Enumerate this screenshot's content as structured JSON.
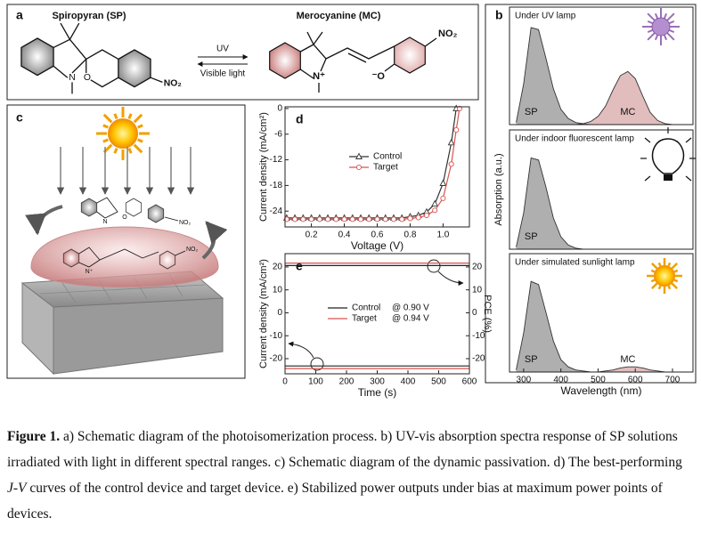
{
  "panel_a": {
    "letter": "a",
    "sp_name": "Spiropyran (SP)",
    "mc_name": "Merocyanine (MC)",
    "forward": "UV",
    "backward": "Visible light",
    "sp_atoms": [
      "N",
      "O",
      "NO₂"
    ],
    "mc_atoms": [
      "N⁺",
      "⁻O",
      "NO₂"
    ]
  },
  "panel_c": {
    "letter": "c",
    "atoms": [
      "N",
      "O",
      "NO₂",
      "N⁺",
      "NO₂"
    ]
  },
  "chart_data": [
    {
      "type": "line",
      "letter": "d",
      "xlabel": "Voltage (V)",
      "ylabel": "Current density (mA/cm²)",
      "x": [
        0.05,
        0.1,
        0.15,
        0.2,
        0.25,
        0.3,
        0.35,
        0.4,
        0.45,
        0.5,
        0.55,
        0.6,
        0.65,
        0.7,
        0.75,
        0.8,
        0.85,
        0.9,
        0.95,
        1.0,
        1.05,
        1.08,
        1.1
      ],
      "series": [
        {
          "name": "Control",
          "color": "#333333",
          "marker": "triangle",
          "values": [
            -25.6,
            -25.6,
            -25.6,
            -25.6,
            -25.6,
            -25.6,
            -25.6,
            -25.6,
            -25.6,
            -25.6,
            -25.6,
            -25.6,
            -25.6,
            -25.6,
            -25.6,
            -25.3,
            -25.0,
            -24.2,
            -22.3,
            -17.5,
            -8,
            0,
            null
          ]
        },
        {
          "name": "Target",
          "color": "#d9534f",
          "marker": "circle",
          "values": [
            -25.9,
            -25.9,
            -25.9,
            -25.9,
            -25.9,
            -25.9,
            -25.9,
            -25.9,
            -25.9,
            -25.9,
            -25.9,
            -25.9,
            -25.9,
            -25.9,
            -25.9,
            -25.7,
            -25.5,
            -25.0,
            -23.8,
            -21,
            -13,
            -5,
            0
          ]
        }
      ],
      "xlim": [
        0.04,
        1.16
      ],
      "xticks": [
        0.2,
        0.4,
        0.6,
        0.8,
        {
          "value": 1,
          "label": "1.0"
        }
      ],
      "ylim": [
        -27.7,
        0.4
      ],
      "yticks": [
        -24,
        -18,
        -12,
        -6,
        0
      ]
    },
    {
      "type": "line",
      "letter": "e",
      "xlabel": "Time (s)",
      "ylabel": "Current density (mA/cm²)",
      "y2label": "PCE (%)",
      "x": [
        0,
        600
      ],
      "series": [
        {
          "name": "Control",
          "color": "#222222",
          "values": [
            -23.2,
            -23.2
          ]
        },
        {
          "name": "Target",
          "color": "#d9534f",
          "values": [
            -24.3,
            -24.3
          ]
        },
        {
          "color": "#222222",
          "axis": "y2",
          "values": [
            20.6,
            20.6
          ]
        },
        {
          "color": "#d9534f",
          "axis": "y2",
          "values": [
            21.7,
            21.7
          ]
        }
      ],
      "legend_notes": [
        "@ 0.90 V",
        "@ 0.94 V"
      ],
      "xlim": [
        0,
        600
      ],
      "xticks": [
        0,
        100,
        200,
        300,
        400,
        500,
        600
      ],
      "ylim": [
        -26.6,
        25.8
      ],
      "yticks": [
        -20,
        -10,
        0,
        10,
        20
      ],
      "y2lim": [
        -26.6,
        25.8
      ],
      "y2ticks": [
        -20,
        -10,
        0,
        10,
        20
      ]
    },
    {
      "type": "area",
      "letter": "b",
      "subtitle": "Under UV lamp",
      "x": [
        280,
        300,
        320,
        340,
        360,
        380,
        400,
        420,
        440,
        460,
        480,
        500,
        520,
        540,
        560,
        580,
        600,
        620,
        640,
        660,
        680,
        700,
        720,
        740
      ],
      "series": [
        {
          "name": "SP",
          "color": "#6e6e6e",
          "values": [
            0.02,
            0.4,
            0.95,
            0.93,
            0.65,
            0.35,
            0.15,
            0.06,
            0.02,
            0.01,
            0,
            0,
            0,
            0,
            0,
            0,
            0,
            0,
            0,
            0,
            0,
            0,
            0,
            0
          ]
        },
        {
          "name": "MC",
          "color": "#c98686",
          "values": [
            0,
            0,
            0,
            0,
            0,
            0,
            0,
            0,
            0,
            0.01,
            0.03,
            0.08,
            0.18,
            0.34,
            0.48,
            0.52,
            0.45,
            0.28,
            0.12,
            0.04,
            0.01,
            0,
            0,
            0
          ]
        }
      ],
      "xlim": [
        262,
        755
      ],
      "ylim": [
        0,
        1.15
      ]
    },
    {
      "type": "area",
      "subtitle": "Under indoor fluorescent lamp",
      "ylabel": "Absorption (a.u.)",
      "x": [
        280,
        300,
        320,
        340,
        360,
        380,
        400,
        420,
        440,
        460,
        480,
        500,
        520,
        540,
        560,
        580,
        600,
        620,
        640,
        660,
        680,
        700,
        720,
        740
      ],
      "series": [
        {
          "name": "SP",
          "color": "#6e6e6e",
          "values": [
            0.02,
            0.35,
            0.88,
            0.86,
            0.6,
            0.3,
            0.12,
            0.04,
            0.01,
            0,
            0,
            0,
            0,
            0,
            0,
            0,
            0,
            0,
            0,
            0,
            0,
            0,
            0,
            0
          ]
        }
      ],
      "xlim": [
        262,
        755
      ],
      "ylim": [
        0,
        1.15
      ]
    },
    {
      "type": "area",
      "subtitle": "Under simulated sunlight lamp",
      "xlabel": "Wavelength (nm)",
      "x": [
        280,
        300,
        320,
        340,
        360,
        380,
        400,
        420,
        440,
        460,
        480,
        500,
        520,
        540,
        560,
        580,
        600,
        620,
        640,
        660,
        680,
        700,
        720,
        740
      ],
      "series": [
        {
          "name": "SP",
          "color": "#6e6e6e",
          "values": [
            0.02,
            0.38,
            0.88,
            0.85,
            0.58,
            0.3,
            0.12,
            0.05,
            0.02,
            0.01,
            0,
            0,
            0,
            0,
            0,
            0,
            0,
            0,
            0,
            0,
            0,
            0,
            0,
            0
          ]
        },
        {
          "name": "MC",
          "color": "#c98686",
          "values": [
            0,
            0,
            0,
            0,
            0,
            0,
            0,
            0,
            0,
            0,
            0,
            0,
            0.01,
            0.02,
            0.04,
            0.05,
            0.05,
            0.04,
            0.02,
            0.01,
            0,
            0,
            0,
            0
          ]
        }
      ],
      "xlim": [
        262,
        755
      ],
      "xticks": [
        300,
        400,
        500,
        600,
        700
      ],
      "ylim": [
        0,
        1.15
      ]
    }
  ],
  "caption": {
    "label": "Figure 1.",
    "parts": [
      " a) Schematic diagram of the photoisomerization process. b) UV-vis absorption spectra response of SP solutions irradiated with light in different spectral ranges. c) Schematic diagram of the dynamic passivation. d) The best-performing ",
      "J-V",
      " curves of the control device and target device. e) Stabilized power outputs under bias at maximum power points of devices."
    ]
  }
}
